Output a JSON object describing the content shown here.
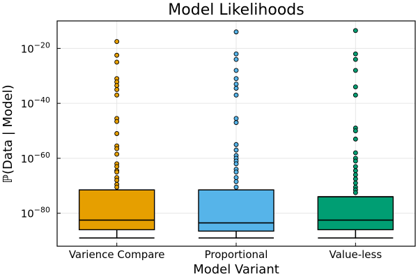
{
  "chart_data": {
    "type": "box",
    "title": "Model Likelihoods",
    "xlabel": "Model Variant",
    "ylabel": "ℙ(Data | Model)",
    "y_scale": "log10",
    "ylim_exponent": [
      -92,
      -10
    ],
    "y_ticks_exponent": [
      -80,
      -60,
      -40,
      -20
    ],
    "y_tick_labels": [
      {
        "base": "10",
        "exp": "−80"
      },
      {
        "base": "10",
        "exp": "−60"
      },
      {
        "base": "10",
        "exp": "−40"
      },
      {
        "base": "10",
        "exp": "−20"
      }
    ],
    "grid": true,
    "legend": "none",
    "series": [
      {
        "name": "Varience Compare",
        "color": "#e69f00",
        "whisker_low_exp": -89,
        "q1_exp": -86,
        "median_exp": -82.5,
        "q3_exp": -71.5,
        "outliers_exp": [
          -17.5,
          -22.5,
          -25,
          -31,
          -32.2,
          -33.5,
          -35,
          -37,
          -45.5,
          -46.6,
          -51,
          -55.5,
          -56.5,
          -58.5,
          -62,
          -63,
          -64.5,
          -65,
          -67,
          -68,
          -69.5,
          -70.5
        ]
      },
      {
        "name": "Proportional",
        "color": "#56b4e9",
        "whisker_low_exp": -89,
        "q1_exp": -86.5,
        "median_exp": -83.5,
        "q3_exp": -71.5,
        "outliers_exp": [
          -14,
          -22,
          -24,
          -28,
          -31,
          -33,
          -34.5,
          -37,
          -45.5,
          -47,
          -55,
          -57,
          -59,
          -60,
          -61,
          -62,
          -64,
          -65,
          -67,
          -68.5,
          -70.5
        ]
      },
      {
        "name": "Value-less",
        "color": "#009e73",
        "whisker_low_exp": -89,
        "q1_exp": -86,
        "median_exp": -82.5,
        "q3_exp": -74,
        "outliers_exp": [
          -13.5,
          -22,
          -24,
          -28,
          -34,
          -37,
          -49,
          -50,
          -53,
          -58,
          -60,
          -61,
          -63,
          -64.5,
          -66,
          -67.5,
          -69,
          -70.5,
          -71.5,
          -72.5
        ]
      }
    ]
  }
}
